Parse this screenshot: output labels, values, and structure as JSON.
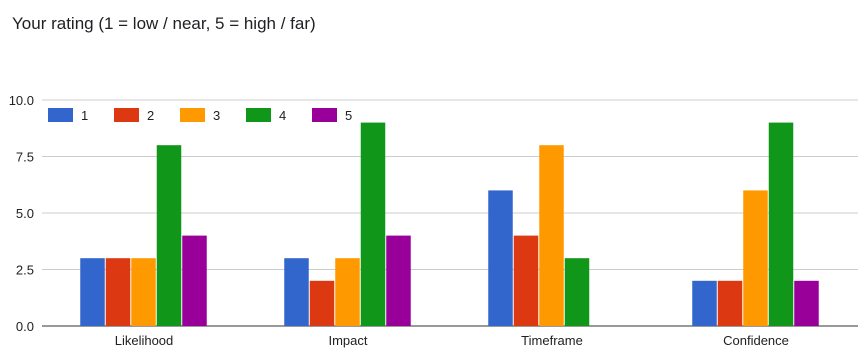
{
  "chart_data": {
    "type": "bar",
    "title": "Your rating (1 = low / near, 5 = high / far)",
    "xlabel": "",
    "ylabel": "",
    "ylim": [
      0,
      10
    ],
    "yticks": [
      "0.0",
      "2.5",
      "5.0",
      "7.5",
      "10.0"
    ],
    "ytick_values": [
      0,
      2.5,
      5,
      7.5,
      10
    ],
    "grid": true,
    "legend_position": "top-left",
    "categories": [
      "Likelihood",
      "Impact",
      "Timeframe",
      "Confidence"
    ],
    "series": [
      {
        "name": "1",
        "color": "#3366cc",
        "values": [
          3,
          3,
          6,
          2
        ]
      },
      {
        "name": "2",
        "color": "#dc3912",
        "values": [
          3,
          2,
          4,
          2
        ]
      },
      {
        "name": "3",
        "color": "#ff9900",
        "values": [
          3,
          3,
          8,
          6
        ]
      },
      {
        "name": "4",
        "color": "#109618",
        "values": [
          8,
          9,
          3,
          9
        ]
      },
      {
        "name": "5",
        "color": "#990099",
        "values": [
          4,
          4,
          0,
          2
        ]
      }
    ]
  }
}
